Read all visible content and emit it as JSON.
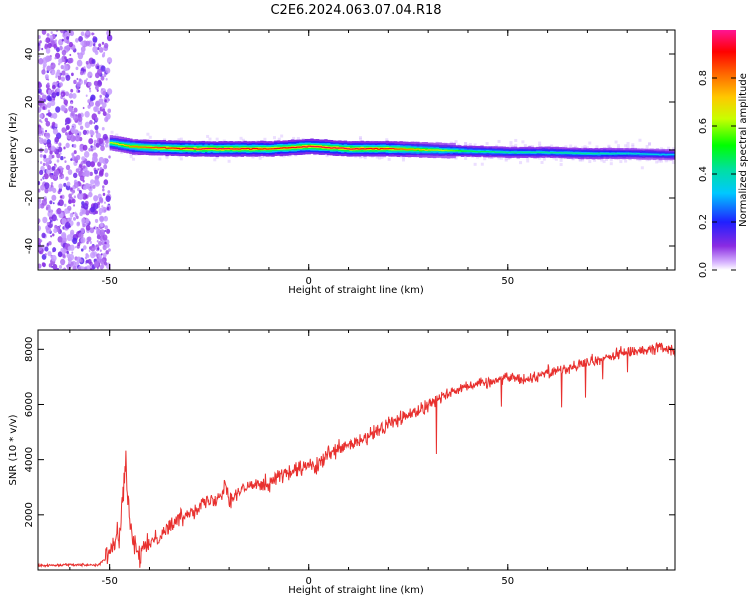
{
  "title": "C2E6.2024.063.07.04.R18",
  "colors": {
    "snr_line": "#e8302e",
    "axis": "#000000",
    "scatter": "#7a1ff5",
    "background": "#ffffff"
  },
  "chart_data": [
    {
      "type": "heatmap",
      "xlabel": "Height of straight line (km)",
      "ylabel": "Frequency (Hz)",
      "xlim": [
        -68,
        92
      ],
      "ylim": [
        -50,
        50
      ],
      "xticks": [
        -50,
        0,
        50
      ],
      "yticks": [
        -40,
        -20,
        0,
        20,
        40
      ],
      "grid": false,
      "colorbar": {
        "label": "Normalized spectral amplitude",
        "range": [
          0,
          1
        ],
        "ticks": [
          0.0,
          0.2,
          0.4,
          0.6,
          0.8
        ],
        "colormap": "rainbow (violet→blue→cyan→green→yellow→orange→red→magenta)"
      },
      "noise_region": {
        "x_range": [
          -68,
          -50
        ],
        "y_range": [
          -50,
          50
        ]
      },
      "ridge": {
        "description": "narrow high-amplitude band near 0 Hz, slowly drifting from about +3 Hz to -2 Hz",
        "x": [
          -50,
          -45,
          -40,
          -30,
          -20,
          -10,
          0,
          10,
          20,
          30,
          40,
          50,
          60,
          70,
          80,
          92
        ],
        "frequency_hz": [
          3,
          1.5,
          1,
          0.5,
          0.5,
          0.5,
          1.5,
          0.5,
          0.5,
          0,
          -0.5,
          -1,
          -1,
          -1.5,
          -1.5,
          -2
        ],
        "peak_amplitude": [
          0.65,
          0.8,
          0.85,
          0.95,
          0.95,
          0.9,
          0.95,
          0.95,
          0.9,
          0.7,
          0.5,
          0.45,
          0.45,
          0.45,
          0.4,
          0.35
        ]
      }
    },
    {
      "type": "line",
      "xlabel": "Height of straight line (km)",
      "ylabel": "SNR (10 * v/v)",
      "xlim": [
        -68,
        92
      ],
      "ylim": [
        0,
        8700
      ],
      "xticks": [
        -50,
        0,
        50
      ],
      "yticks": [
        2000,
        4000,
        6000,
        8000
      ],
      "grid": false,
      "series": [
        {
          "x": [
            -68,
            -60,
            -53,
            -51,
            -49,
            -47.5,
            -46.5,
            -46,
            -45.5,
            -45,
            -44,
            -43,
            -40,
            -37,
            -35,
            -33,
            -30,
            -28,
            -25,
            -22,
            -21,
            -20,
            -18,
            -15,
            -13,
            -10,
            -8,
            -5,
            -3,
            0,
            2,
            5,
            10,
            15,
            20,
            25,
            30,
            35,
            40,
            45,
            50,
            55,
            60,
            65,
            70,
            75,
            80,
            85,
            88,
            90,
            92
          ],
          "y": [
            150,
            200,
            180,
            400,
            900,
            1400,
            3000,
            4000,
            2600,
            1800,
            900,
            500,
            1000,
            1300,
            1600,
            1800,
            2100,
            2300,
            2500,
            2700,
            3300,
            2500,
            2800,
            3000,
            3200,
            3100,
            3400,
            3500,
            3600,
            3800,
            3700,
            4200,
            4500,
            4800,
            5300,
            5600,
            6000,
            6400,
            6700,
            6800,
            7000,
            6900,
            7200,
            7300,
            7500,
            7700,
            7900,
            8000,
            8100,
            8000,
            7900
          ]
        }
      ]
    }
  ]
}
